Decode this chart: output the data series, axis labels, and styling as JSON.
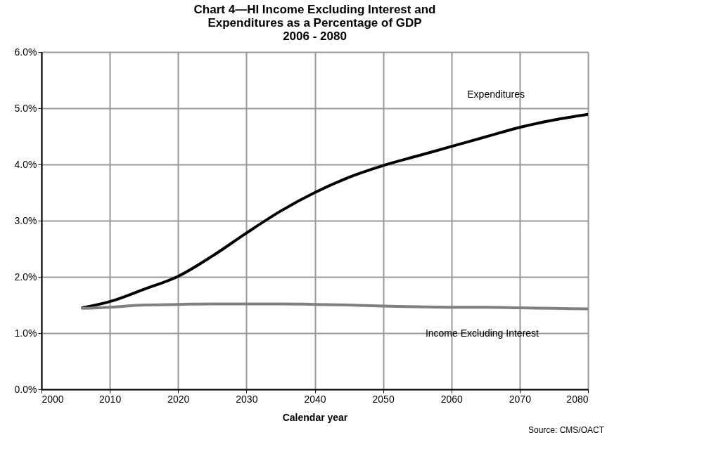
{
  "chart_data": {
    "type": "line",
    "title": [
      "Chart 4—HI Income Excluding Interest and",
      "Expenditures as a Percentage of GDP",
      "2006 - 2080"
    ],
    "xlabel": "Calendar year",
    "annotations": [
      "Source: CMS/OACT"
    ],
    "x": [
      2006,
      2010,
      2015,
      2020,
      2025,
      2030,
      2035,
      2040,
      2045,
      2050,
      2055,
      2060,
      2065,
      2070,
      2075,
      2080
    ],
    "series": [
      {
        "name": "Expenditures",
        "color": "#000000",
        "values": [
          1.45,
          1.56,
          1.78,
          2.01,
          2.37,
          2.78,
          3.17,
          3.5,
          3.77,
          3.98,
          4.15,
          4.32,
          4.49,
          4.66,
          4.79,
          4.89
        ]
      },
      {
        "name": "Income Excluding Interest",
        "color": "#808080",
        "values": [
          1.44,
          1.46,
          1.5,
          1.51,
          1.52,
          1.52,
          1.52,
          1.51,
          1.5,
          1.48,
          1.47,
          1.46,
          1.46,
          1.45,
          1.44,
          1.43
        ]
      }
    ],
    "xlim": [
      2000,
      2080
    ],
    "xticks": [
      2000,
      2010,
      2020,
      2030,
      2040,
      2050,
      2060,
      2070,
      2080
    ],
    "ylim": [
      0,
      6
    ],
    "yticks": [
      {
        "value": 0,
        "label": "0.0%"
      },
      {
        "value": 1,
        "label": "1.0%"
      },
      {
        "value": 2,
        "label": "2.0%"
      },
      {
        "value": 3,
        "label": "3.0%"
      },
      {
        "value": 4,
        "label": "4.0%"
      },
      {
        "value": 5,
        "label": "5.0%"
      },
      {
        "value": 6,
        "label": "6.0%"
      }
    ],
    "grid": true,
    "legend": false,
    "marker": "none",
    "line_style": "solid"
  }
}
